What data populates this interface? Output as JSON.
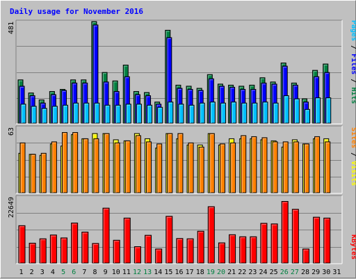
{
  "chart_data": {
    "type": "bar",
    "title": "Daily usage for November 2016",
    "colors": {
      "hits": "#008040",
      "files": "#0000ff",
      "pages": "#00c0ff",
      "visits": "#ffff00",
      "sites": "#ff8000",
      "kbytes": "#ff0000",
      "title": "#0000ff",
      "background": "#c0c0c0",
      "weekend_day": "#008040",
      "weekday": "#000000"
    },
    "legend_top": {
      "pages": "Pages",
      "sep1": " / ",
      "files": "Files",
      "sep2": " / ",
      "hits": "Hits"
    },
    "legend_mid": {
      "sites": "Sites",
      "sep": " / ",
      "visits": "Visits"
    },
    "legend_bottom": {
      "kbytes": "KBytes"
    },
    "panels": [
      {
        "ymax_label": "481",
        "ylim": [
          0,
          481
        ]
      },
      {
        "ymax_label": "63",
        "ylim": [
          0,
          63
        ]
      },
      {
        "ymax_label": "22649",
        "ylim": [
          0,
          22649
        ]
      }
    ],
    "days": [
      {
        "label": "1",
        "weekend": false
      },
      {
        "label": "2",
        "weekend": false
      },
      {
        "label": "3",
        "weekend": false
      },
      {
        "label": "4",
        "weekend": false
      },
      {
        "label": "5",
        "weekend": true
      },
      {
        "label": "6",
        "weekend": true
      },
      {
        "label": "7",
        "weekend": false
      },
      {
        "label": "8",
        "weekend": false
      },
      {
        "label": "9",
        "weekend": false
      },
      {
        "label": "10",
        "weekend": false
      },
      {
        "label": "11",
        "weekend": false
      },
      {
        "label": "12",
        "weekend": true
      },
      {
        "label": "13",
        "weekend": true
      },
      {
        "label": "14",
        "weekend": false
      },
      {
        "label": "15",
        "weekend": false
      },
      {
        "label": "16",
        "weekend": false
      },
      {
        "label": "17",
        "weekend": false
      },
      {
        "label": "18",
        "weekend": false
      },
      {
        "label": "19",
        "weekend": true
      },
      {
        "label": "20",
        "weekend": true
      },
      {
        "label": "21",
        "weekend": false
      },
      {
        "label": "22",
        "weekend": false
      },
      {
        "label": "23",
        "weekend": false
      },
      {
        "label": "24",
        "weekend": false
      },
      {
        "label": "25",
        "weekend": false
      },
      {
        "label": "26",
        "weekend": true
      },
      {
        "label": "27",
        "weekend": true
      },
      {
        "label": "28",
        "weekend": false
      },
      {
        "label": "29",
        "weekend": false
      },
      {
        "label": "30",
        "weekend": false
      },
      {
        "label": "31",
        "weekend": false
      }
    ],
    "series": {
      "hits": [
        205,
        143,
        110,
        150,
        160,
        205,
        205,
        481,
        240,
        200,
        275,
        150,
        145,
        100,
        440,
        180,
        175,
        165,
        230,
        185,
        180,
        175,
        180,
        215,
        195,
        285,
        190,
        115,
        250,
        280,
        0
      ],
      "files": [
        175,
        130,
        95,
        135,
        155,
        190,
        190,
        465,
        195,
        150,
        220,
        135,
        130,
        90,
        405,
        165,
        160,
        155,
        210,
        175,
        170,
        160,
        160,
        190,
        185,
        270,
        180,
        100,
        220,
        240,
        0
      ],
      "pages": [
        90,
        80,
        70,
        80,
        85,
        95,
        95,
        95,
        85,
        85,
        90,
        90,
        85,
        75,
        100,
        90,
        85,
        95,
        100,
        95,
        100,
        95,
        95,
        100,
        95,
        130,
        115,
        65,
        120,
        120,
        0
      ],
      "visits": [
        38,
        37,
        36,
        47,
        45,
        56,
        52,
        57,
        57,
        51,
        50,
        57,
        52,
        43,
        57,
        52,
        46,
        46,
        57,
        46,
        52,
        52,
        52,
        51,
        50,
        44,
        51,
        47,
        52,
        52,
        0
      ],
      "sites": [
        48,
        37,
        38,
        49,
        58,
        58,
        52,
        52,
        57,
        48,
        50,
        55,
        49,
        47,
        57,
        57,
        48,
        44,
        57,
        47,
        48,
        55,
        54,
        53,
        49,
        49,
        49,
        47,
        54,
        49,
        0
      ],
      "kbytes": [
        12800,
        6800,
        8300,
        9600,
        8600,
        13700,
        10600,
        6700,
        18800,
        7800,
        15400,
        5600,
        9500,
        4800,
        16000,
        8400,
        8300,
        10900,
        19300,
        6900,
        9700,
        9000,
        9000,
        13600,
        13400,
        21100,
        18400,
        4800,
        15700,
        15400,
        0
      ]
    }
  }
}
